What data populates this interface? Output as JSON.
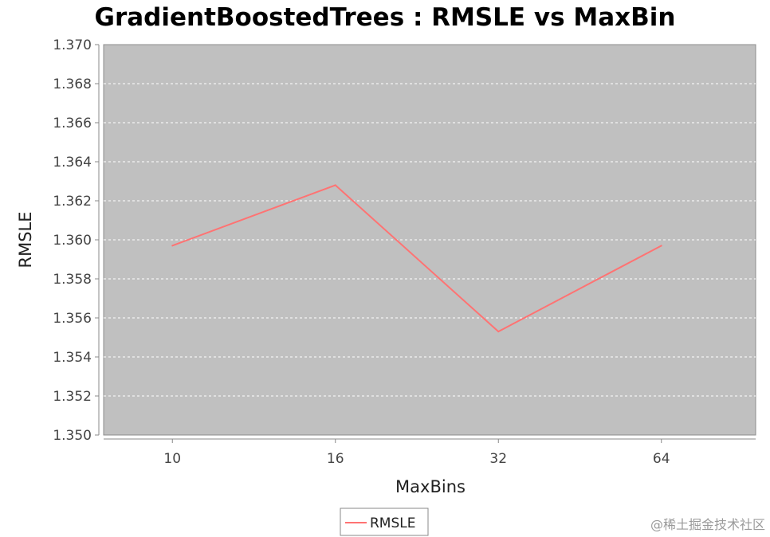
{
  "chart_data": {
    "type": "line",
    "title": "GradientBoostedTrees : RMSLE vs MaxBin",
    "xlabel": "MaxBins",
    "ylabel": "RMSLE",
    "categories": [
      "10",
      "16",
      "32",
      "64"
    ],
    "series": [
      {
        "name": "RMSLE",
        "values": [
          1.3597,
          1.3628,
          1.3553,
          1.3597
        ]
      }
    ],
    "ylim": [
      1.35,
      1.37
    ],
    "yticks": [
      "1.350",
      "1.352",
      "1.354",
      "1.356",
      "1.358",
      "1.360",
      "1.362",
      "1.364",
      "1.366",
      "1.368",
      "1.370"
    ],
    "grid": true,
    "legend": "bottom-center",
    "colors": {
      "plot_background": "#c0c0c0",
      "series": "#ff7373",
      "grid": "#ffffff"
    }
  },
  "watermark": "@稀土掘金技术社区"
}
